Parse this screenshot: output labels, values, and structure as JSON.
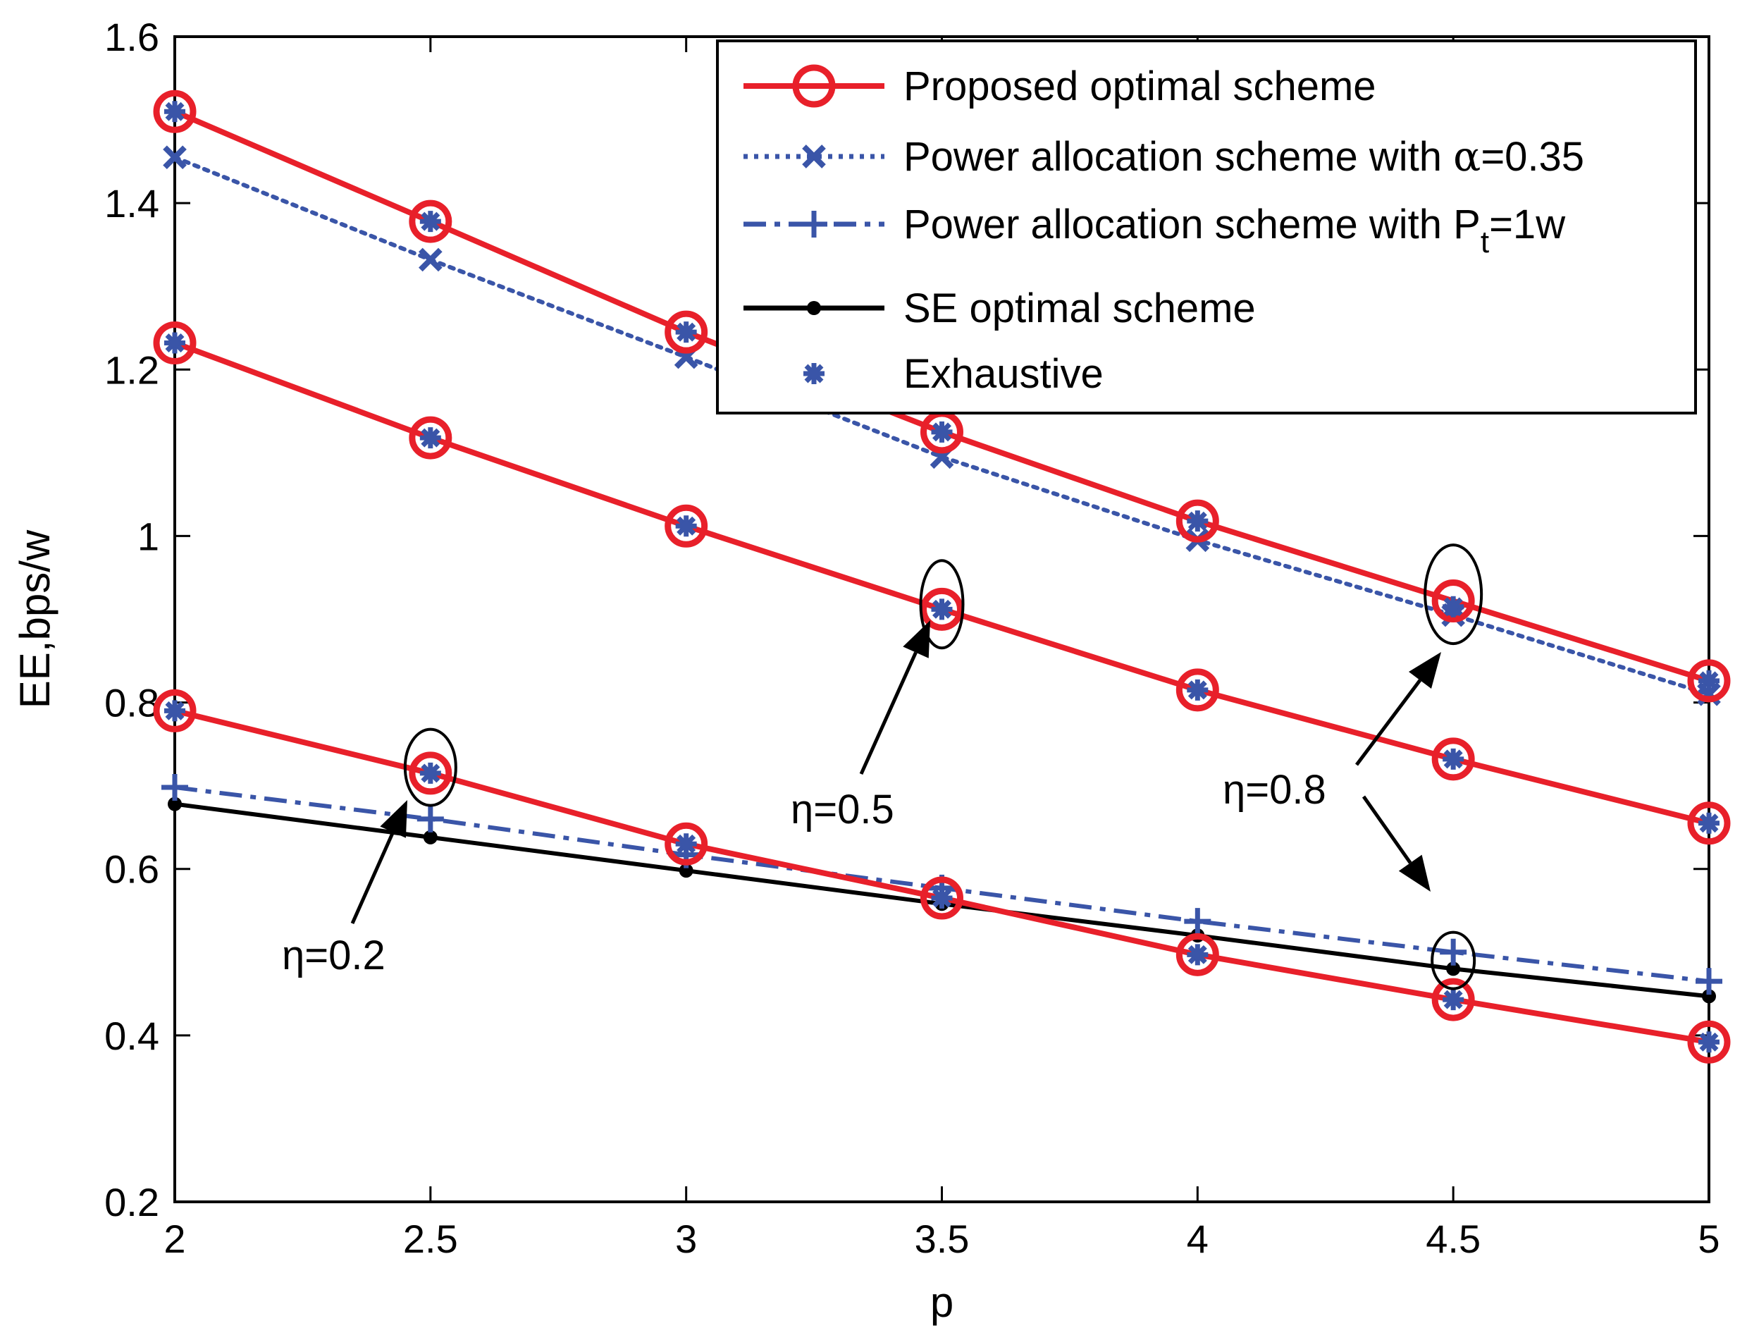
{
  "chart_data": {
    "type": "line",
    "title": "",
    "xlabel": "p",
    "ylabel": "EE,bps/w",
    "xlim": [
      2,
      5
    ],
    "ylim": [
      0.2,
      1.6
    ],
    "x_ticks": [
      "2",
      "2.5",
      "3",
      "3.5",
      "4",
      "4.5",
      "5"
    ],
    "y_ticks": [
      "0.2",
      "0.4",
      "0.6",
      "0.8",
      "1",
      "1.2",
      "1.4",
      "1.6"
    ],
    "x": [
      2,
      2.5,
      3,
      3.5,
      4,
      4.5,
      5
    ],
    "series": [
      {
        "name": "Proposed optimal scheme",
        "group": "eta=0.8",
        "color": "#e8202a",
        "style": "solid",
        "marker": "circle",
        "values": [
          1.51,
          1.378,
          1.245,
          1.125,
          1.018,
          0.922,
          0.826
        ]
      },
      {
        "name": "Power allocation scheme with α=0.35",
        "group": "eta=0.8",
        "color": "#3a55a8",
        "style": "dotted",
        "marker": "x",
        "values": [
          1.455,
          1.332,
          1.215,
          1.095,
          0.995,
          0.905,
          0.81
        ]
      },
      {
        "name": "Exhaustive",
        "group": "eta=0.8",
        "color": "#3a55a8",
        "style": "none",
        "marker": "star",
        "values": [
          1.51,
          1.378,
          1.245,
          1.125,
          1.018,
          0.915,
          0.826
        ]
      },
      {
        "name": "Proposed optimal scheme",
        "group": "eta=0.5",
        "color": "#e8202a",
        "style": "solid",
        "marker": "circle",
        "values": [
          1.232,
          1.118,
          1.012,
          0.912,
          0.815,
          0.732,
          0.655
        ]
      },
      {
        "name": "Exhaustive",
        "group": "eta=0.5",
        "color": "#3a55a8",
        "style": "none",
        "marker": "star",
        "values": [
          1.232,
          1.118,
          1.012,
          0.912,
          0.815,
          0.732,
          0.655
        ]
      },
      {
        "name": "Proposed optimal scheme",
        "group": "eta=0.2",
        "color": "#e8202a",
        "style": "solid",
        "marker": "circle",
        "values": [
          0.79,
          0.715,
          0.63,
          0.565,
          0.497,
          0.443,
          0.392
        ]
      },
      {
        "name": "Exhaustive",
        "group": "eta=0.2",
        "color": "#3a55a8",
        "style": "none",
        "marker": "star",
        "values": [
          0.79,
          0.715,
          0.63,
          0.565,
          0.497,
          0.443,
          0.392
        ]
      },
      {
        "name": "Power allocation scheme with Pt=1w",
        "group": "eta=0.2",
        "color": "#3a55a8",
        "style": "dashdot",
        "marker": "plus",
        "values": [
          0.698,
          0.66,
          0.617,
          0.577,
          0.537,
          0.5,
          0.465
        ]
      },
      {
        "name": "SE optimal scheme",
        "group": "eta=0.2",
        "color": "#000000",
        "style": "solid",
        "marker": "dot",
        "values": [
          0.678,
          0.638,
          0.598,
          0.558,
          0.52,
          0.48,
          0.447
        ]
      }
    ],
    "legend": {
      "position": "top-right",
      "entries": [
        {
          "label": "Proposed optimal scheme",
          "color": "#e8202a",
          "style": "solid",
          "marker": "circle"
        },
        {
          "label_prefix": "Power allocation scheme with ",
          "label_symbol": "α",
          "label_suffix": "=0.35",
          "color": "#3a55a8",
          "style": "dotted",
          "marker": "x"
        },
        {
          "label_prefix": "Power allocation scheme with P",
          "label_subscript": "t",
          "label_suffix": "=1w",
          "color": "#3a55a8",
          "style": "dashdot",
          "marker": "plus"
        },
        {
          "label": "SE optimal scheme",
          "color": "#000000",
          "style": "solid",
          "marker": "dot"
        },
        {
          "label": "Exhaustive",
          "color": "#3a55a8",
          "style": "none",
          "marker": "star"
        }
      ]
    },
    "annotations": [
      {
        "text": "η=0.2",
        "points_to": {
          "x": 2.5,
          "y": 0.715
        }
      },
      {
        "text": "η=0.5",
        "points_to": {
          "x": 3.5,
          "y": 0.912
        }
      },
      {
        "text": "η=0.8",
        "points_to": [
          {
            "x": 4.5,
            "y": 0.92
          },
          {
            "x": 4.5,
            "y": 0.5
          }
        ]
      }
    ]
  }
}
